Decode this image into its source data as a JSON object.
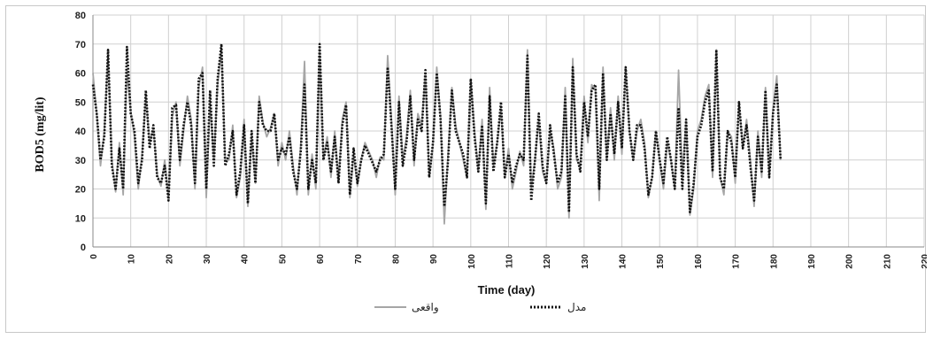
{
  "chart_data": {
    "type": "line",
    "xlabel": "Time (day)",
    "ylabel": "BOD5 (mg/lit)",
    "xlim": [
      0,
      220
    ],
    "ylim": [
      0,
      80
    ],
    "xticks": [
      0,
      10,
      20,
      30,
      40,
      50,
      60,
      70,
      80,
      90,
      100,
      110,
      120,
      130,
      140,
      150,
      160,
      170,
      180,
      190,
      200,
      210,
      220
    ],
    "yticks": [
      0,
      10,
      20,
      30,
      40,
      50,
      60,
      70,
      80
    ],
    "grid": true,
    "legend": "bottom-center",
    "series": [
      {
        "name": "واقعی",
        "color": "#a6a6a6",
        "style": "solid",
        "values": [
          60,
          46,
          28,
          40,
          66,
          30,
          19,
          36,
          18,
          61,
          47,
          38,
          20,
          32,
          52,
          36,
          41,
          25,
          21,
          30,
          17,
          45,
          50,
          28,
          40,
          52,
          44,
          20,
          55,
          62,
          17,
          50,
          30,
          56,
          68,
          30,
          30,
          42,
          17,
          24,
          44,
          14,
          38,
          22,
          52,
          43,
          38,
          41,
          46,
          28,
          36,
          30,
          40,
          28,
          18,
          35,
          64,
          18,
          32,
          20,
          69,
          30,
          38,
          24,
          40,
          22,
          44,
          50,
          17,
          32,
          21,
          30,
          36,
          33,
          30,
          24,
          31,
          30,
          66,
          44,
          18,
          52,
          30,
          38,
          54,
          28,
          46,
          42,
          60,
          24,
          35,
          62,
          45,
          8,
          32,
          55,
          42,
          36,
          30,
          24,
          58,
          40,
          26,
          44,
          13,
          55,
          28,
          36,
          48,
          24,
          34,
          20,
          26,
          33,
          28,
          68,
          20,
          30,
          44,
          26,
          22,
          40,
          34,
          20,
          24,
          55,
          10,
          65,
          30,
          28,
          52,
          36,
          56,
          54,
          16,
          62,
          30,
          48,
          30,
          52,
          32,
          62,
          40,
          30,
          40,
          44,
          36,
          17,
          24,
          40,
          30,
          20,
          36,
          30,
          20,
          61,
          24,
          44,
          11,
          20,
          40,
          44,
          52,
          56,
          24,
          68,
          24,
          18,
          40,
          38,
          22,
          50,
          34,
          44,
          30,
          14,
          40,
          24,
          55,
          24,
          48,
          59,
          30
        ]
      },
      {
        "name": "مدل",
        "color": "#111111",
        "style": "dotted",
        "values": [
          56,
          46,
          30,
          38,
          68,
          28,
          20,
          34,
          20,
          69,
          46,
          40,
          22,
          30,
          54,
          34,
          42,
          24,
          22,
          28,
          16,
          48,
          49,
          30,
          42,
          50,
          42,
          22,
          58,
          60,
          20,
          54,
          28,
          58,
          70,
          28,
          32,
          40,
          18,
          26,
          42,
          15,
          40,
          22,
          50,
          42,
          40,
          40,
          46,
          30,
          34,
          32,
          38,
          26,
          20,
          33,
          56,
          20,
          30,
          22,
          70,
          30,
          36,
          26,
          38,
          22,
          42,
          49,
          18,
          34,
          22,
          30,
          35,
          32,
          29,
          26,
          30,
          32,
          62,
          42,
          20,
          50,
          28,
          36,
          52,
          30,
          44,
          40,
          61,
          24,
          36,
          60,
          44,
          14,
          30,
          54,
          40,
          36,
          32,
          24,
          58,
          38,
          26,
          42,
          15,
          52,
          26,
          36,
          50,
          24,
          32,
          22,
          28,
          32,
          30,
          66,
          16,
          30,
          46,
          28,
          22,
          42,
          32,
          22,
          26,
          52,
          12,
          62,
          32,
          26,
          50,
          38,
          54,
          56,
          20,
          60,
          30,
          46,
          32,
          50,
          34,
          62,
          40,
          30,
          42,
          42,
          34,
          18,
          24,
          40,
          30,
          22,
          38,
          30,
          20,
          48,
          20,
          44,
          12,
          22,
          38,
          42,
          50,
          54,
          26,
          68,
          24,
          20,
          40,
          36,
          24,
          50,
          34,
          42,
          28,
          16,
          38,
          26,
          54,
          24,
          46,
          56,
          30
        ]
      }
    ]
  }
}
